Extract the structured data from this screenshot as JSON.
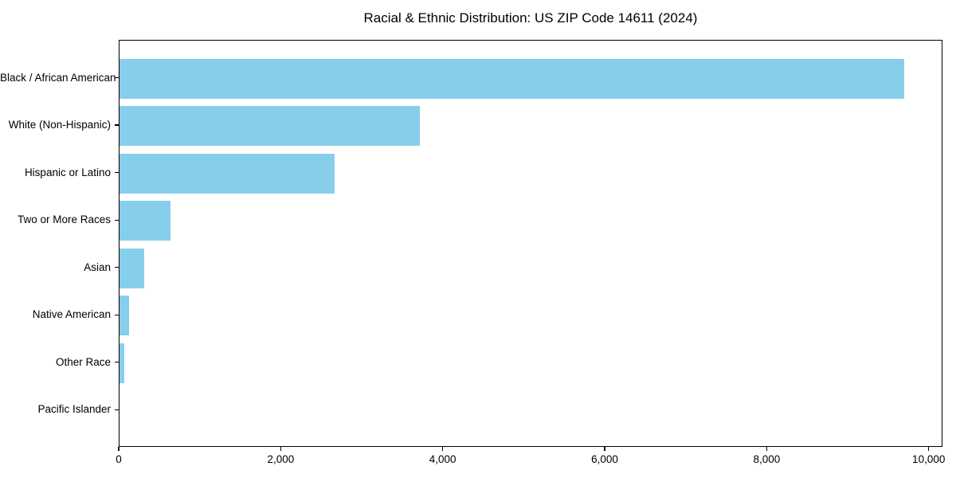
{
  "figure": {
    "background": "#ffffff",
    "title": "Racial & Ethnic Distribution: US ZIP Code 14611 (2024)"
  },
  "chart_data": {
    "type": "bar",
    "orientation": "horizontal",
    "title": "Racial & Ethnic Distribution: US ZIP Code 14611 (2024)",
    "categories": [
      "Black / African American",
      "White (Non-Hispanic)",
      "Hispanic or Latino",
      "Two or More Races",
      "Asian",
      "Native American",
      "Other Race",
      "Pacific Islander"
    ],
    "values": [
      9690,
      3710,
      2655,
      625,
      305,
      115,
      60,
      0
    ],
    "xlabel": "",
    "ylabel": "",
    "xlim": [
      0,
      10170
    ],
    "xticks": [
      0,
      2000,
      4000,
      6000,
      8000,
      10000
    ],
    "xtick_labels": [
      "0",
      "2,000",
      "4,000",
      "6,000",
      "8,000",
      "10,000"
    ],
    "bar_color": "#87CEEB",
    "spine_color": "#000000",
    "grid": false,
    "legend": null
  }
}
